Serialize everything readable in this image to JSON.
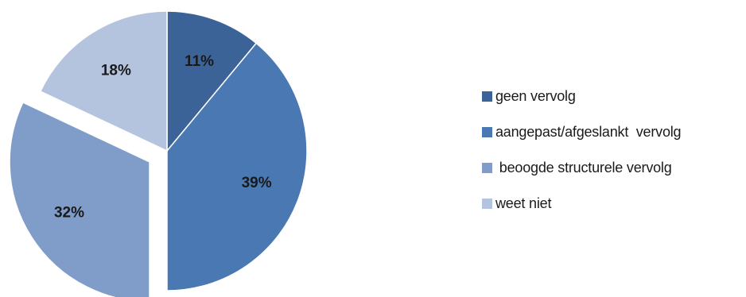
{
  "chart_data": {
    "type": "pie",
    "title": "",
    "slices": [
      {
        "label": "geen vervolg",
        "value": 11,
        "display": "11%",
        "color": "#3b6397",
        "exploded": false
      },
      {
        "label": "aangepast/afgeslankt  vervolg",
        "value": 39,
        "display": "39%",
        "color": "#4a78b2",
        "exploded": false
      },
      {
        "label": " beoogde structurele vervolg",
        "value": 32,
        "display": "32%",
        "color": "#7f9dc8",
        "exploded": true
      },
      {
        "label": "weet niet",
        "value": 18,
        "display": "18%",
        "color": "#b5c4de",
        "exploded": false
      }
    ],
    "start_angle": "12 o'clock",
    "direction": "clockwise",
    "legend_position": "right"
  }
}
